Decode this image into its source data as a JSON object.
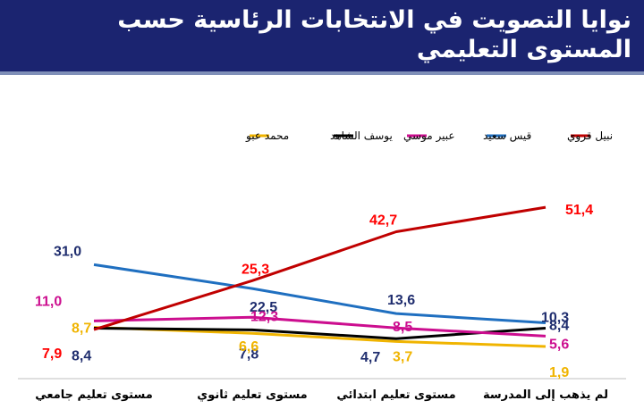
{
  "title": {
    "line1": "نوايا التصويت في الانتخابات الرئاسية حسب",
    "line2": "المستوى التعليمي"
  },
  "chart_data": {
    "type": "line",
    "categories": [
      "مستوى تعليم جامعي",
      "مستوى تعليم ثانوي",
      "مستوى تعليم ابتدائي",
      "لم يذهب إلى المدرسة"
    ],
    "ylim": [
      0,
      60
    ],
    "grid": false,
    "legend_position": "top",
    "series": [
      {
        "name": "نبيل قروي",
        "color": "#c00000",
        "values": [
          7.9,
          25.3,
          42.7,
          51.4
        ],
        "labels": [
          "7,9",
          "25,3",
          "42,7",
          "51,4"
        ],
        "label_color": "#ff0000"
      },
      {
        "name": "قيس سعيد",
        "color": "#1f6fc0",
        "values": [
          31.0,
          22.5,
          13.6,
          10.3
        ],
        "labels": [
          "31,0",
          "22,5",
          "13,6",
          "10,3"
        ],
        "label_color": "#1f2d6e"
      },
      {
        "name": "عبير موسي",
        "color": "#cc0e8f",
        "values": [
          11.0,
          12.3,
          8.5,
          5.6
        ],
        "labels": [
          "11,0",
          "12,3",
          "8,5",
          "5,6"
        ],
        "label_color": "#cc0e8f"
      },
      {
        "name": "يوسف الشاهد",
        "color": "#000000",
        "values": [
          8.4,
          7.8,
          4.7,
          8.4
        ],
        "labels": [
          "8,4",
          "7,8",
          "4,7",
          "8,4"
        ],
        "label_color": "#1f2d6e"
      },
      {
        "name": "محمد عبو",
        "color": "#f0b400",
        "values": [
          8.7,
          6.6,
          3.7,
          1.9
        ],
        "labels": [
          "8,7",
          "6,6",
          "3,7",
          "1,9"
        ],
        "label_color": "#f0b400"
      }
    ]
  }
}
